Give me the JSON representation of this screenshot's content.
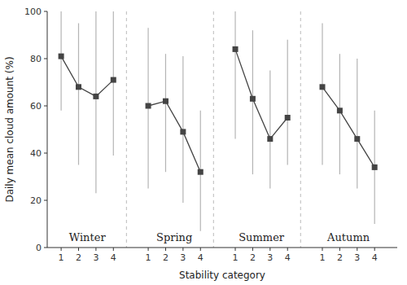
{
  "chart_data": {
    "type": "line",
    "xlabel": "Stability category",
    "ylabel": "Daily mean cloud amount (%)",
    "categories": [
      "1",
      "2",
      "3",
      "4"
    ],
    "series": [
      {
        "name": "Winter",
        "values": [
          81,
          68,
          64,
          71
        ],
        "error_lower": [
          23,
          33,
          41,
          32
        ],
        "error_upper": [
          19,
          27,
          36,
          29
        ]
      },
      {
        "name": "Spring",
        "values": [
          60,
          62,
          49,
          32
        ],
        "error_lower": [
          35,
          30,
          30,
          25
        ],
        "error_upper": [
          33,
          20,
          32,
          26
        ]
      },
      {
        "name": "Summer",
        "values": [
          84,
          63,
          46,
          55
        ],
        "error_lower": [
          38,
          32,
          21,
          20
        ],
        "error_upper": [
          16,
          29,
          29,
          33
        ]
      },
      {
        "name": "Autumn",
        "values": [
          68,
          58,
          46,
          34
        ],
        "error_lower": [
          33,
          27,
          21,
          24
        ],
        "error_upper": [
          27,
          24,
          34,
          24
        ]
      }
    ],
    "color": "#444444",
    "marker": "square",
    "ylim": [
      0,
      100
    ],
    "yticks": [
      0,
      20,
      40,
      60,
      80,
      100
    ],
    "grid": false
  }
}
